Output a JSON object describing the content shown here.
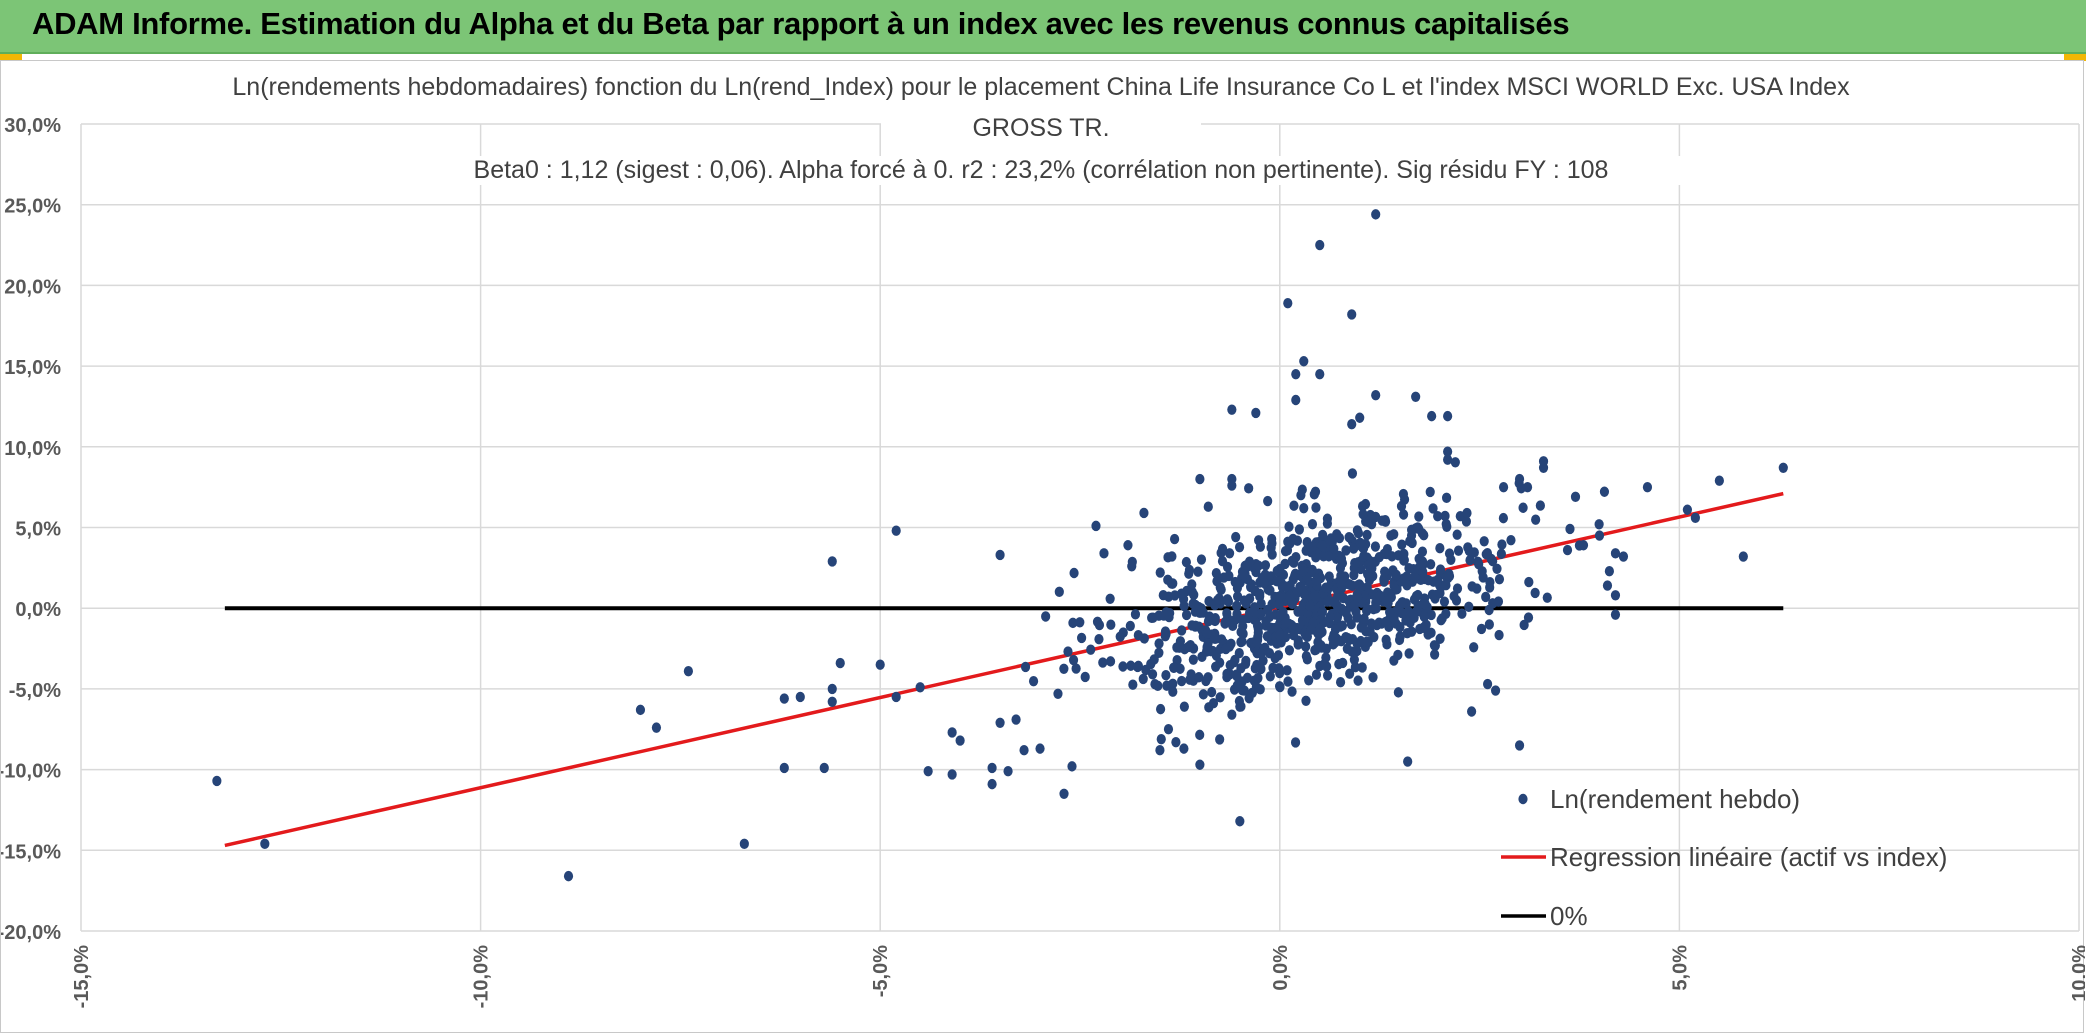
{
  "header": {
    "title": "ADAM Informe. Estimation du Alpha et du Beta par rapport à un index avec les revenus connus capitalisés",
    "accent_color": "#7cc576",
    "corner_color": "#f2b705"
  },
  "chart_data": {
    "type": "scatter",
    "title_lines": [
      "Ln(rendements hebdomadaires) fonction du Ln(rend_Index) pour le placement China Life Insurance Co L et l'index MSCI WORLD Exc. USA Index",
      "GROSS TR.",
      "Beta0 : 1,12 (sigest : 0,06). Alpha forcé à 0. r2 : 23,2% (corrélation non pertinente). Sig résidu FY : 108"
    ],
    "xlim": [
      -15,
      10
    ],
    "ylim": [
      -20,
      30
    ],
    "x_ticks": [
      "-15,0%",
      "-10,0%",
      "-5,0%",
      "0,0%",
      "5,0%",
      "10,0%"
    ],
    "y_ticks": [
      "30,0%",
      "25,0%",
      "20,0%",
      "15,0%",
      "10,0%",
      "5,0%",
      "0,0%",
      "-5,0%",
      "-10,0%",
      "-15,0%",
      "-20,0%"
    ],
    "grid": true,
    "legend_position": "bottom-right",
    "series": [
      {
        "name": "Ln(rendement hebdo)",
        "type": "scatter",
        "color": "#264478",
        "cloud_count": 900,
        "points": [
          [
            -13.3,
            -10.7
          ],
          [
            -12.7,
            -14.6
          ],
          [
            -8.9,
            -16.6
          ],
          [
            -6.7,
            -14.6
          ],
          [
            -8.0,
            -6.3
          ],
          [
            -7.8,
            -7.4
          ],
          [
            -7.4,
            -3.9
          ],
          [
            -6.2,
            -5.6
          ],
          [
            -6.0,
            -5.5
          ],
          [
            -6.2,
            -9.9
          ],
          [
            -5.7,
            -9.9
          ],
          [
            -5.6,
            2.9
          ],
          [
            -5.6,
            -5.0
          ],
          [
            -5.6,
            -5.8
          ],
          [
            -5.5,
            -3.4
          ],
          [
            -5.0,
            -3.5
          ],
          [
            -4.8,
            4.8
          ],
          [
            -4.8,
            -5.5
          ],
          [
            -4.5,
            -4.9
          ],
          [
            -4.4,
            -10.1
          ],
          [
            -4.1,
            -10.3
          ],
          [
            -4.1,
            -7.7
          ],
          [
            -4.0,
            -8.2
          ],
          [
            -3.6,
            -10.9
          ],
          [
            -3.6,
            -9.9
          ],
          [
            -3.5,
            -7.1
          ],
          [
            -3.4,
            -10.1
          ],
          [
            -3.5,
            3.3
          ],
          [
            -3.3,
            -6.9
          ],
          [
            -3.2,
            -8.8
          ],
          [
            -3.0,
            -8.7
          ],
          [
            -2.7,
            -11.5
          ],
          [
            -2.6,
            -9.8
          ],
          [
            -2.3,
            5.1
          ],
          [
            -2.2,
            3.4
          ],
          [
            -1.9,
            3.9
          ],
          [
            -1.7,
            5.9
          ],
          [
            -1.5,
            -8.8
          ],
          [
            -1.3,
            -8.3
          ],
          [
            -1.2,
            -8.7
          ],
          [
            -1.0,
            -9.7
          ],
          [
            -1.0,
            8.0
          ],
          [
            -0.6,
            8.0
          ],
          [
            -0.6,
            7.6
          ],
          [
            -0.6,
            -6.6
          ],
          [
            -0.5,
            -6.1
          ],
          [
            -0.5,
            -13.2
          ],
          [
            -0.6,
            12.3
          ],
          [
            -0.3,
            12.1
          ],
          [
            0.1,
            18.9
          ],
          [
            0.2,
            12.9
          ],
          [
            0.2,
            14.5
          ],
          [
            0.3,
            15.3
          ],
          [
            0.5,
            14.5
          ],
          [
            0.5,
            22.5
          ],
          [
            0.9,
            18.2
          ],
          [
            0.9,
            11.4
          ],
          [
            1.0,
            11.8
          ],
          [
            1.2,
            13.2
          ],
          [
            1.2,
            24.4
          ],
          [
            1.6,
            -9.5
          ],
          [
            1.7,
            13.1
          ],
          [
            1.9,
            11.9
          ],
          [
            2.1,
            11.9
          ],
          [
            2.1,
            9.7
          ],
          [
            2.1,
            9.2
          ],
          [
            2.4,
            -6.4
          ],
          [
            2.6,
            -4.7
          ],
          [
            2.7,
            -5.1
          ],
          [
            2.8,
            7.5
          ],
          [
            3.0,
            -8.5
          ],
          [
            3.0,
            8.0
          ],
          [
            3.1,
            7.5
          ],
          [
            3.3,
            9.1
          ],
          [
            3.3,
            8.7
          ],
          [
            3.7,
            6.9
          ],
          [
            3.6,
            3.6
          ],
          [
            3.8,
            3.9
          ],
          [
            4.0,
            4.5
          ],
          [
            4.1,
            1.4
          ],
          [
            4.2,
            0.8
          ],
          [
            4.2,
            3.4
          ],
          [
            4.2,
            -0.4
          ],
          [
            4.3,
            3.2
          ],
          [
            4.6,
            7.5
          ],
          [
            5.1,
            6.1
          ],
          [
            5.2,
            5.6
          ],
          [
            5.5,
            7.9
          ],
          [
            5.8,
            3.2
          ],
          [
            6.3,
            8.7
          ]
        ]
      },
      {
        "name": "Regression linéaire (actif vs index)",
        "type": "line",
        "color": "#e31a1c",
        "x": [
          -13.2,
          6.3
        ],
        "y": [
          -14.7,
          7.1
        ]
      },
      {
        "name": "0%",
        "type": "line",
        "color": "#000000",
        "x": [
          -13.2,
          6.3
        ],
        "y": [
          0,
          0
        ]
      }
    ]
  }
}
